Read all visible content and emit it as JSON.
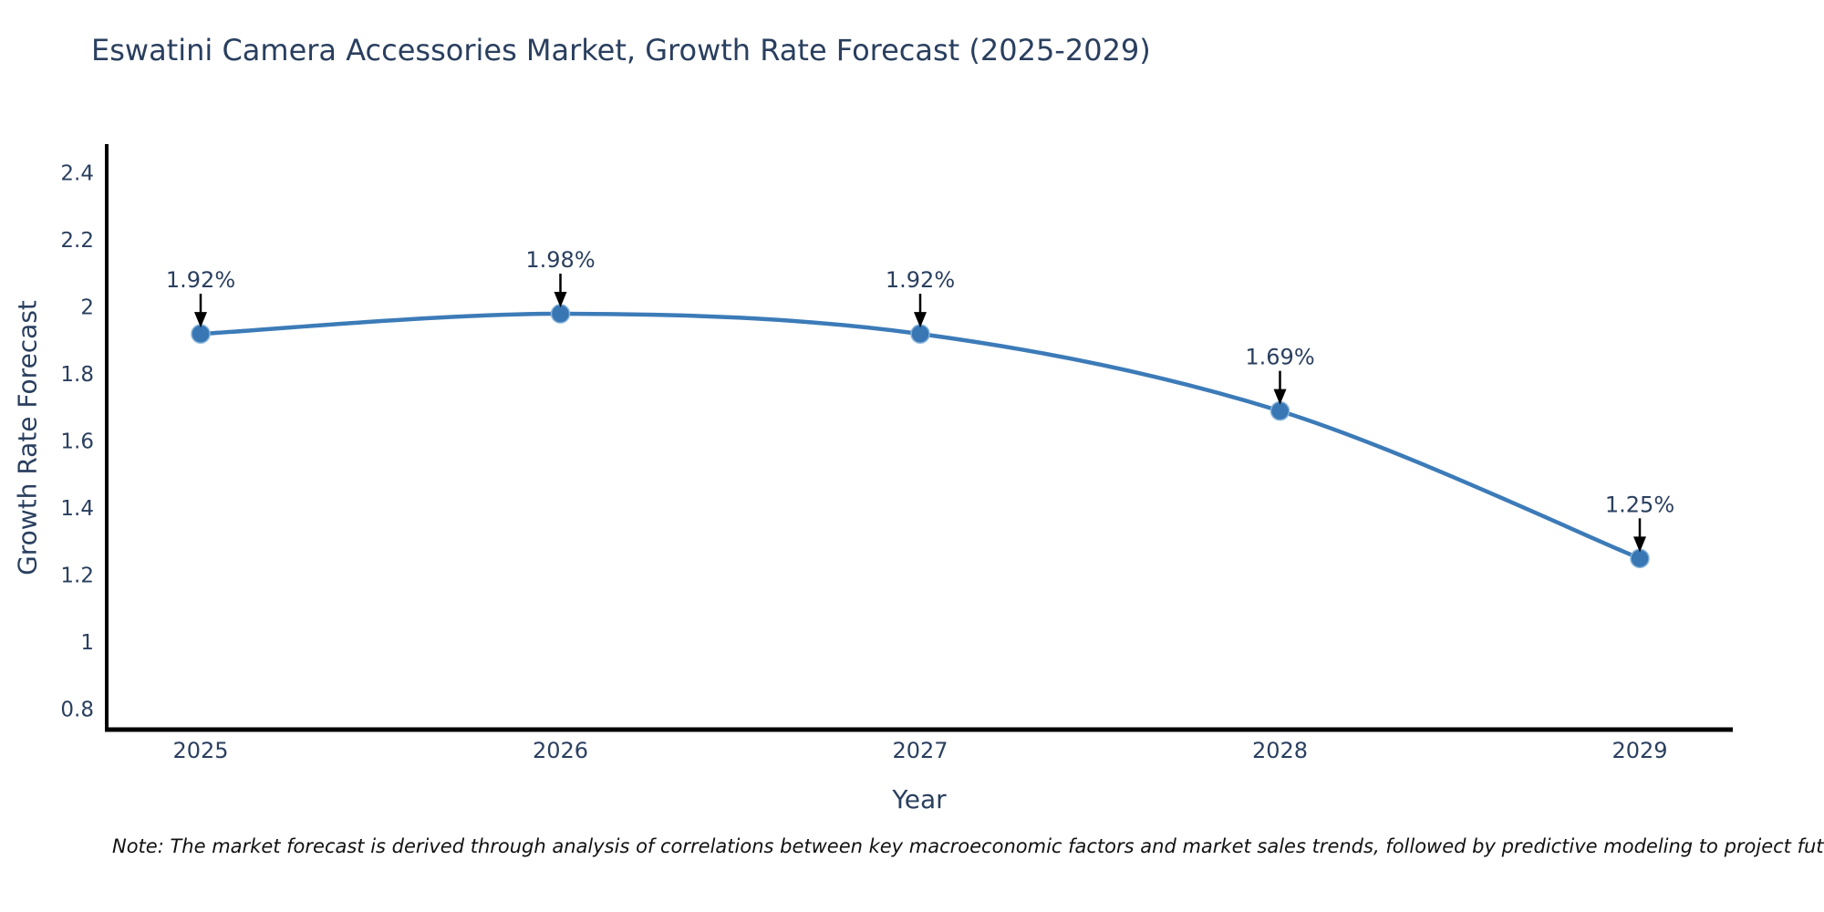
{
  "page": {
    "background_color": "#ffffff"
  },
  "chart_data": {
    "type": "line",
    "title": "Eswatini Camera Accessories Market, Growth Rate Forecast (2025-2029)",
    "xlabel": "Year",
    "ylabel": "Growth Rate Forecast",
    "x": [
      2025,
      2026,
      2027,
      2028,
      2029
    ],
    "x_tick_labels": [
      "2025",
      "2026",
      "2027",
      "2028",
      "2029"
    ],
    "series": [
      {
        "name": "Growth Rate Forecast",
        "values": [
          1.92,
          1.98,
          1.92,
          1.69,
          1.25
        ],
        "point_labels": [
          "1.92%",
          "1.98%",
          "1.92%",
          "1.69%",
          "1.25%"
        ]
      }
    ],
    "y_ticks": [
      2.4,
      2.2,
      2,
      1.8,
      1.6,
      1.4,
      1.2,
      1,
      0.8
    ],
    "y_tick_labels": [
      "2.4",
      "2.2",
      "2",
      "1.8",
      "1.6",
      "1.4",
      "1.2",
      "1",
      "0.8"
    ],
    "ylim": [
      0.74,
      2.49
    ],
    "grid": false,
    "legend": "none",
    "line_shape": "spline",
    "colors": {
      "line": "#3c7bb8",
      "marker_fill": "#3876b4",
      "marker_edge": "#85b3d9",
      "axis": "#000000",
      "text": "#2a3f5f",
      "annotation_arrow": "#000000"
    },
    "note": "Note: The market forecast is derived through analysis of correlations between key macroeconomic factors and market sales trends, followed by predictive modeling to project future sales"
  }
}
